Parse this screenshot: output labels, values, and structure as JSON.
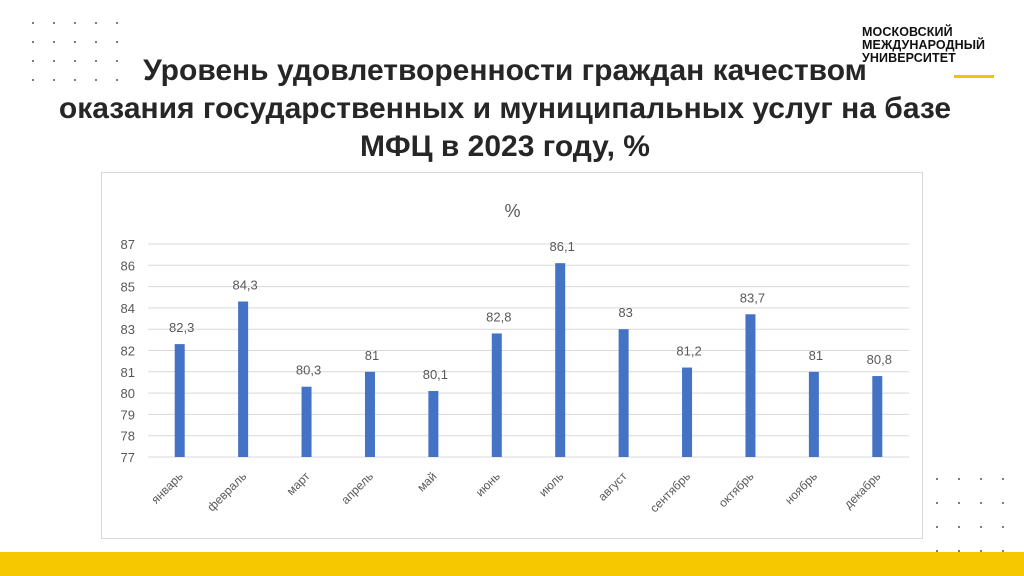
{
  "header": {
    "title_lines": [
      "Уровень удовлетворенности граждан качеством",
      "оказания государственных и муниципальных услуг на базе",
      "МФЦ в 2023 году, %"
    ]
  },
  "logo": {
    "lines": [
      "МОСКОВСКИЙ",
      "МЕЖДУНАРОДНЫЙ",
      "УНИВЕРСИТЕТ"
    ],
    "accent_color": "#f2c500"
  },
  "colors": {
    "bar": "#4472c4",
    "bottom_bar": "#f6c800",
    "grid": "#d9d9d9",
    "text": "#595959"
  },
  "chart_data": {
    "type": "bar",
    "title": "%",
    "categories": [
      "январь",
      "февраль",
      "март",
      "апрель",
      "май",
      "июнь",
      "июль",
      "август",
      "сентябрь",
      "октябрь",
      "ноябрь",
      "декабрь"
    ],
    "values": [
      82.3,
      84.3,
      80.3,
      81,
      80.1,
      82.8,
      86.1,
      83,
      81.2,
      83.7,
      81,
      80.8
    ],
    "data_labels": [
      "82,3",
      "84,3",
      "80,3",
      "81",
      "80,1",
      "82,8",
      "86,1",
      "83",
      "81,2",
      "83,7",
      "81",
      "80,8"
    ],
    "y_ticks": [
      "77",
      "78",
      "79",
      "80",
      "81",
      "82",
      "83",
      "84",
      "85",
      "86",
      "87"
    ],
    "ylim": [
      77,
      87
    ],
    "grid": true,
    "legend": "none"
  }
}
